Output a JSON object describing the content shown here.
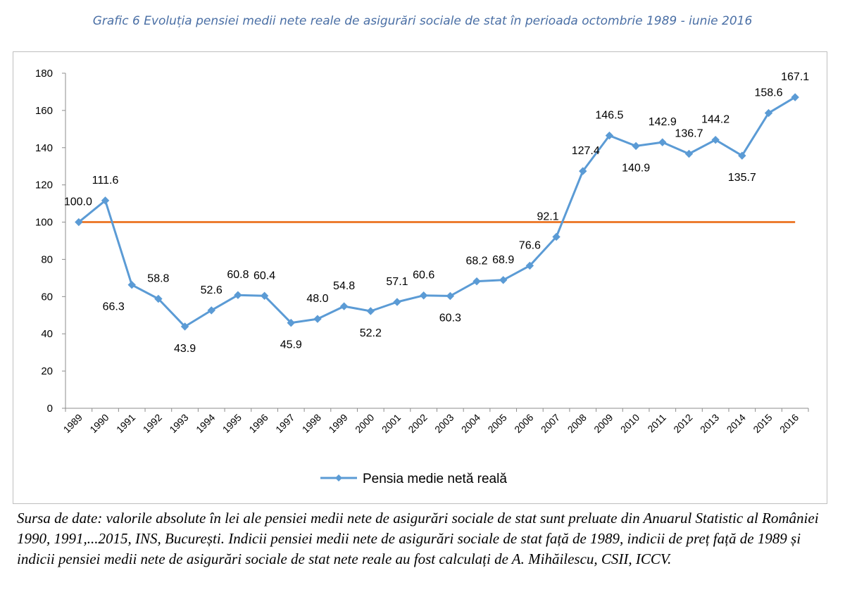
{
  "title": "Grafic 6 Evoluția pensiei medii nete reale de asigurări sociale de stat în perioada octombrie 1989 - iunie 2016",
  "source_note": "Sursa de date: valorile absolute în lei ale pensiei medii nete de asigurări sociale de stat  sunt preluate din Anuarul Statistic al României 1990, 1991,...2015, INS, București. Indicii pensiei medii nete de asigurări sociale de stat  față de 1989, indicii de preț față de 1989 și indicii pensiei medii nete de asigurări sociale de stat  nete reale au fost calculați de A. Mihăilescu, CSII, ICCV.",
  "colors": {
    "series": "#5b9bd5",
    "reference": "#ed7d31",
    "title": "#4a6fa5"
  },
  "chart_data": {
    "type": "line",
    "categories": [
      "1989",
      "1990",
      "1991",
      "1992",
      "1993",
      "1994",
      "1995",
      "1996",
      "1997",
      "1998",
      "1999",
      "2000",
      "2001",
      "2002",
      "2003",
      "2004",
      "2005",
      "2006",
      "2007",
      "2008",
      "2009",
      "2010",
      "2011",
      "2012",
      "2013",
      "2014",
      "2015",
      "2016"
    ],
    "series": [
      {
        "name": "Pensia medie netă reală",
        "marker": "diamond",
        "values": [
          100.0,
          111.6,
          66.3,
          58.8,
          43.9,
          52.6,
          60.8,
          60.4,
          45.9,
          48.0,
          54.8,
          52.2,
          57.1,
          60.6,
          60.3,
          68.2,
          68.9,
          76.6,
          92.1,
          127.4,
          146.5,
          140.9,
          142.9,
          136.7,
          144.2,
          135.7,
          158.6,
          167.1
        ],
        "labels": [
          "100.0",
          "111.6",
          "66.3",
          "58.8",
          "43.9",
          "52.6",
          "60.8",
          "60.4",
          "45.9",
          "48.0",
          "54.8",
          "52.2",
          "57.1",
          "60.6",
          "60.3",
          "68.2",
          "68.9",
          "76.6",
          "92.1",
          "127.4",
          "146.5",
          "140.9",
          "142.9",
          "136.7",
          "144.2",
          "135.7",
          "158.6",
          "167.1"
        ]
      }
    ],
    "reference_line": {
      "value": 100
    },
    "ylim": [
      0,
      180
    ],
    "yticks": [
      0,
      20,
      40,
      60,
      80,
      100,
      120,
      140,
      160,
      180
    ],
    "grid": false,
    "legend": "bottom-center",
    "xlabel": "",
    "ylabel": ""
  }
}
